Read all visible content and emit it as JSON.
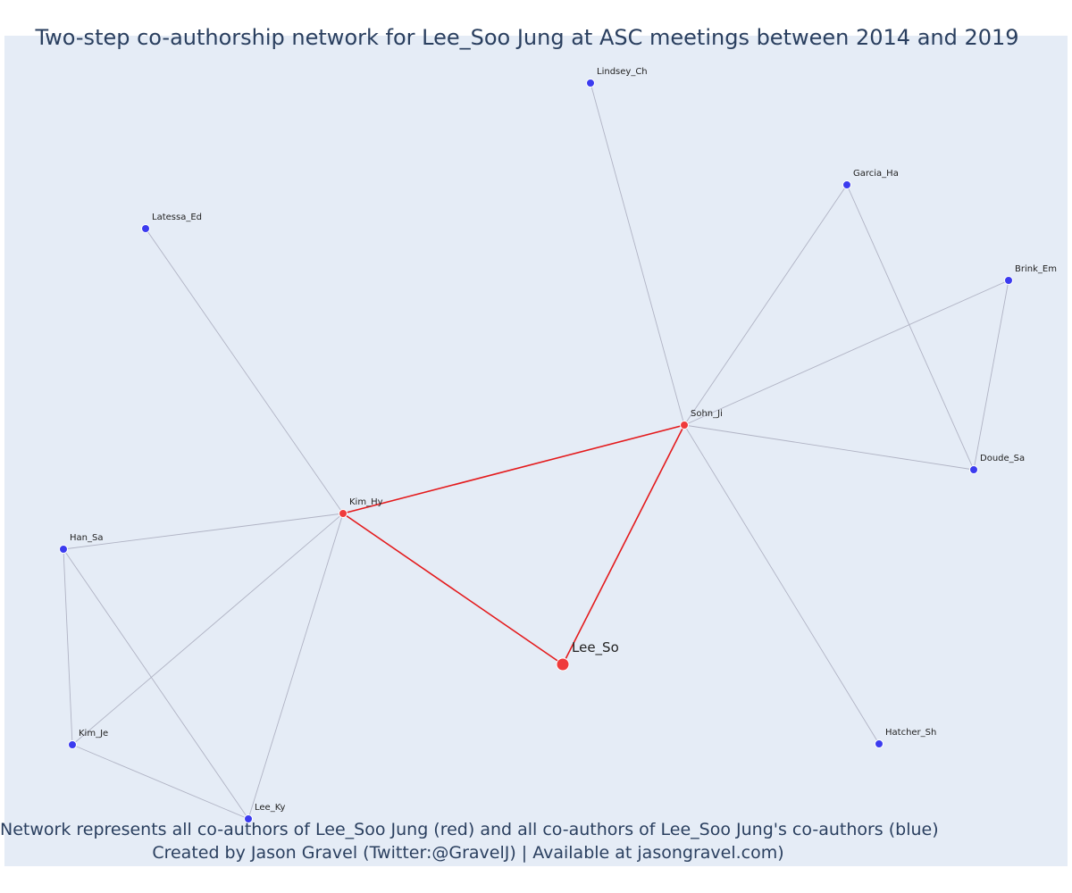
{
  "title": "Two-step co-authorship network for Lee_Soo Jung at ASC meetings between 2014 and 2019",
  "caption": {
    "line1": "Network represents all co-authors of Lee_Soo Jung (red) and all co-authors of Lee_Soo Jung's co-authors (blue)",
    "line2": "Created by Jason Gravel (Twitter:@GravelJ) | Available at jasongravel.com)"
  },
  "colors": {
    "background": "#e5ecf6",
    "red": "#ef3b3b",
    "blue": "#3b3bef",
    "red_edge": "#e41a1c",
    "gray_edge": "#b0b3c4"
  },
  "nodes": [
    {
      "id": "Lee_So",
      "group": "ego"
    },
    {
      "id": "Kim_Hy",
      "group": "coauthor"
    },
    {
      "id": "Sohn_Ji",
      "group": "coauthor"
    },
    {
      "id": "Lindsey_Ch",
      "group": "second"
    },
    {
      "id": "Garcia_Ha",
      "group": "second"
    },
    {
      "id": "Brink_Em",
      "group": "second"
    },
    {
      "id": "Doude_Sa",
      "group": "second"
    },
    {
      "id": "Hatcher_Sh",
      "group": "second"
    },
    {
      "id": "Latessa_Ed",
      "group": "second"
    },
    {
      "id": "Han_Sa",
      "group": "second"
    },
    {
      "id": "Kim_Je",
      "group": "second"
    },
    {
      "id": "Lee_Ky",
      "group": "second"
    }
  ],
  "edges": [
    {
      "source": "Lee_So",
      "target": "Kim_Hy",
      "type": "red"
    },
    {
      "source": "Lee_So",
      "target": "Sohn_Ji",
      "type": "red"
    },
    {
      "source": "Kim_Hy",
      "target": "Sohn_Ji",
      "type": "red"
    },
    {
      "source": "Sohn_Ji",
      "target": "Lindsey_Ch",
      "type": "gray"
    },
    {
      "source": "Sohn_Ji",
      "target": "Garcia_Ha",
      "type": "gray"
    },
    {
      "source": "Sohn_Ji",
      "target": "Brink_Em",
      "type": "gray"
    },
    {
      "source": "Sohn_Ji",
      "target": "Doude_Sa",
      "type": "gray"
    },
    {
      "source": "Sohn_Ji",
      "target": "Hatcher_Sh",
      "type": "gray"
    },
    {
      "source": "Garcia_Ha",
      "target": "Doude_Sa",
      "type": "gray"
    },
    {
      "source": "Brink_Em",
      "target": "Doude_Sa",
      "type": "gray"
    },
    {
      "source": "Kim_Hy",
      "target": "Latessa_Ed",
      "type": "gray"
    },
    {
      "source": "Kim_Hy",
      "target": "Han_Sa",
      "type": "gray"
    },
    {
      "source": "Kim_Hy",
      "target": "Kim_Je",
      "type": "gray"
    },
    {
      "source": "Kim_Hy",
      "target": "Lee_Ky",
      "type": "gray"
    },
    {
      "source": "Han_Sa",
      "target": "Kim_Je",
      "type": "gray"
    },
    {
      "source": "Han_Sa",
      "target": "Lee_Ky",
      "type": "gray"
    },
    {
      "source": "Kim_Je",
      "target": "Lee_Ky",
      "type": "gray"
    }
  ]
}
